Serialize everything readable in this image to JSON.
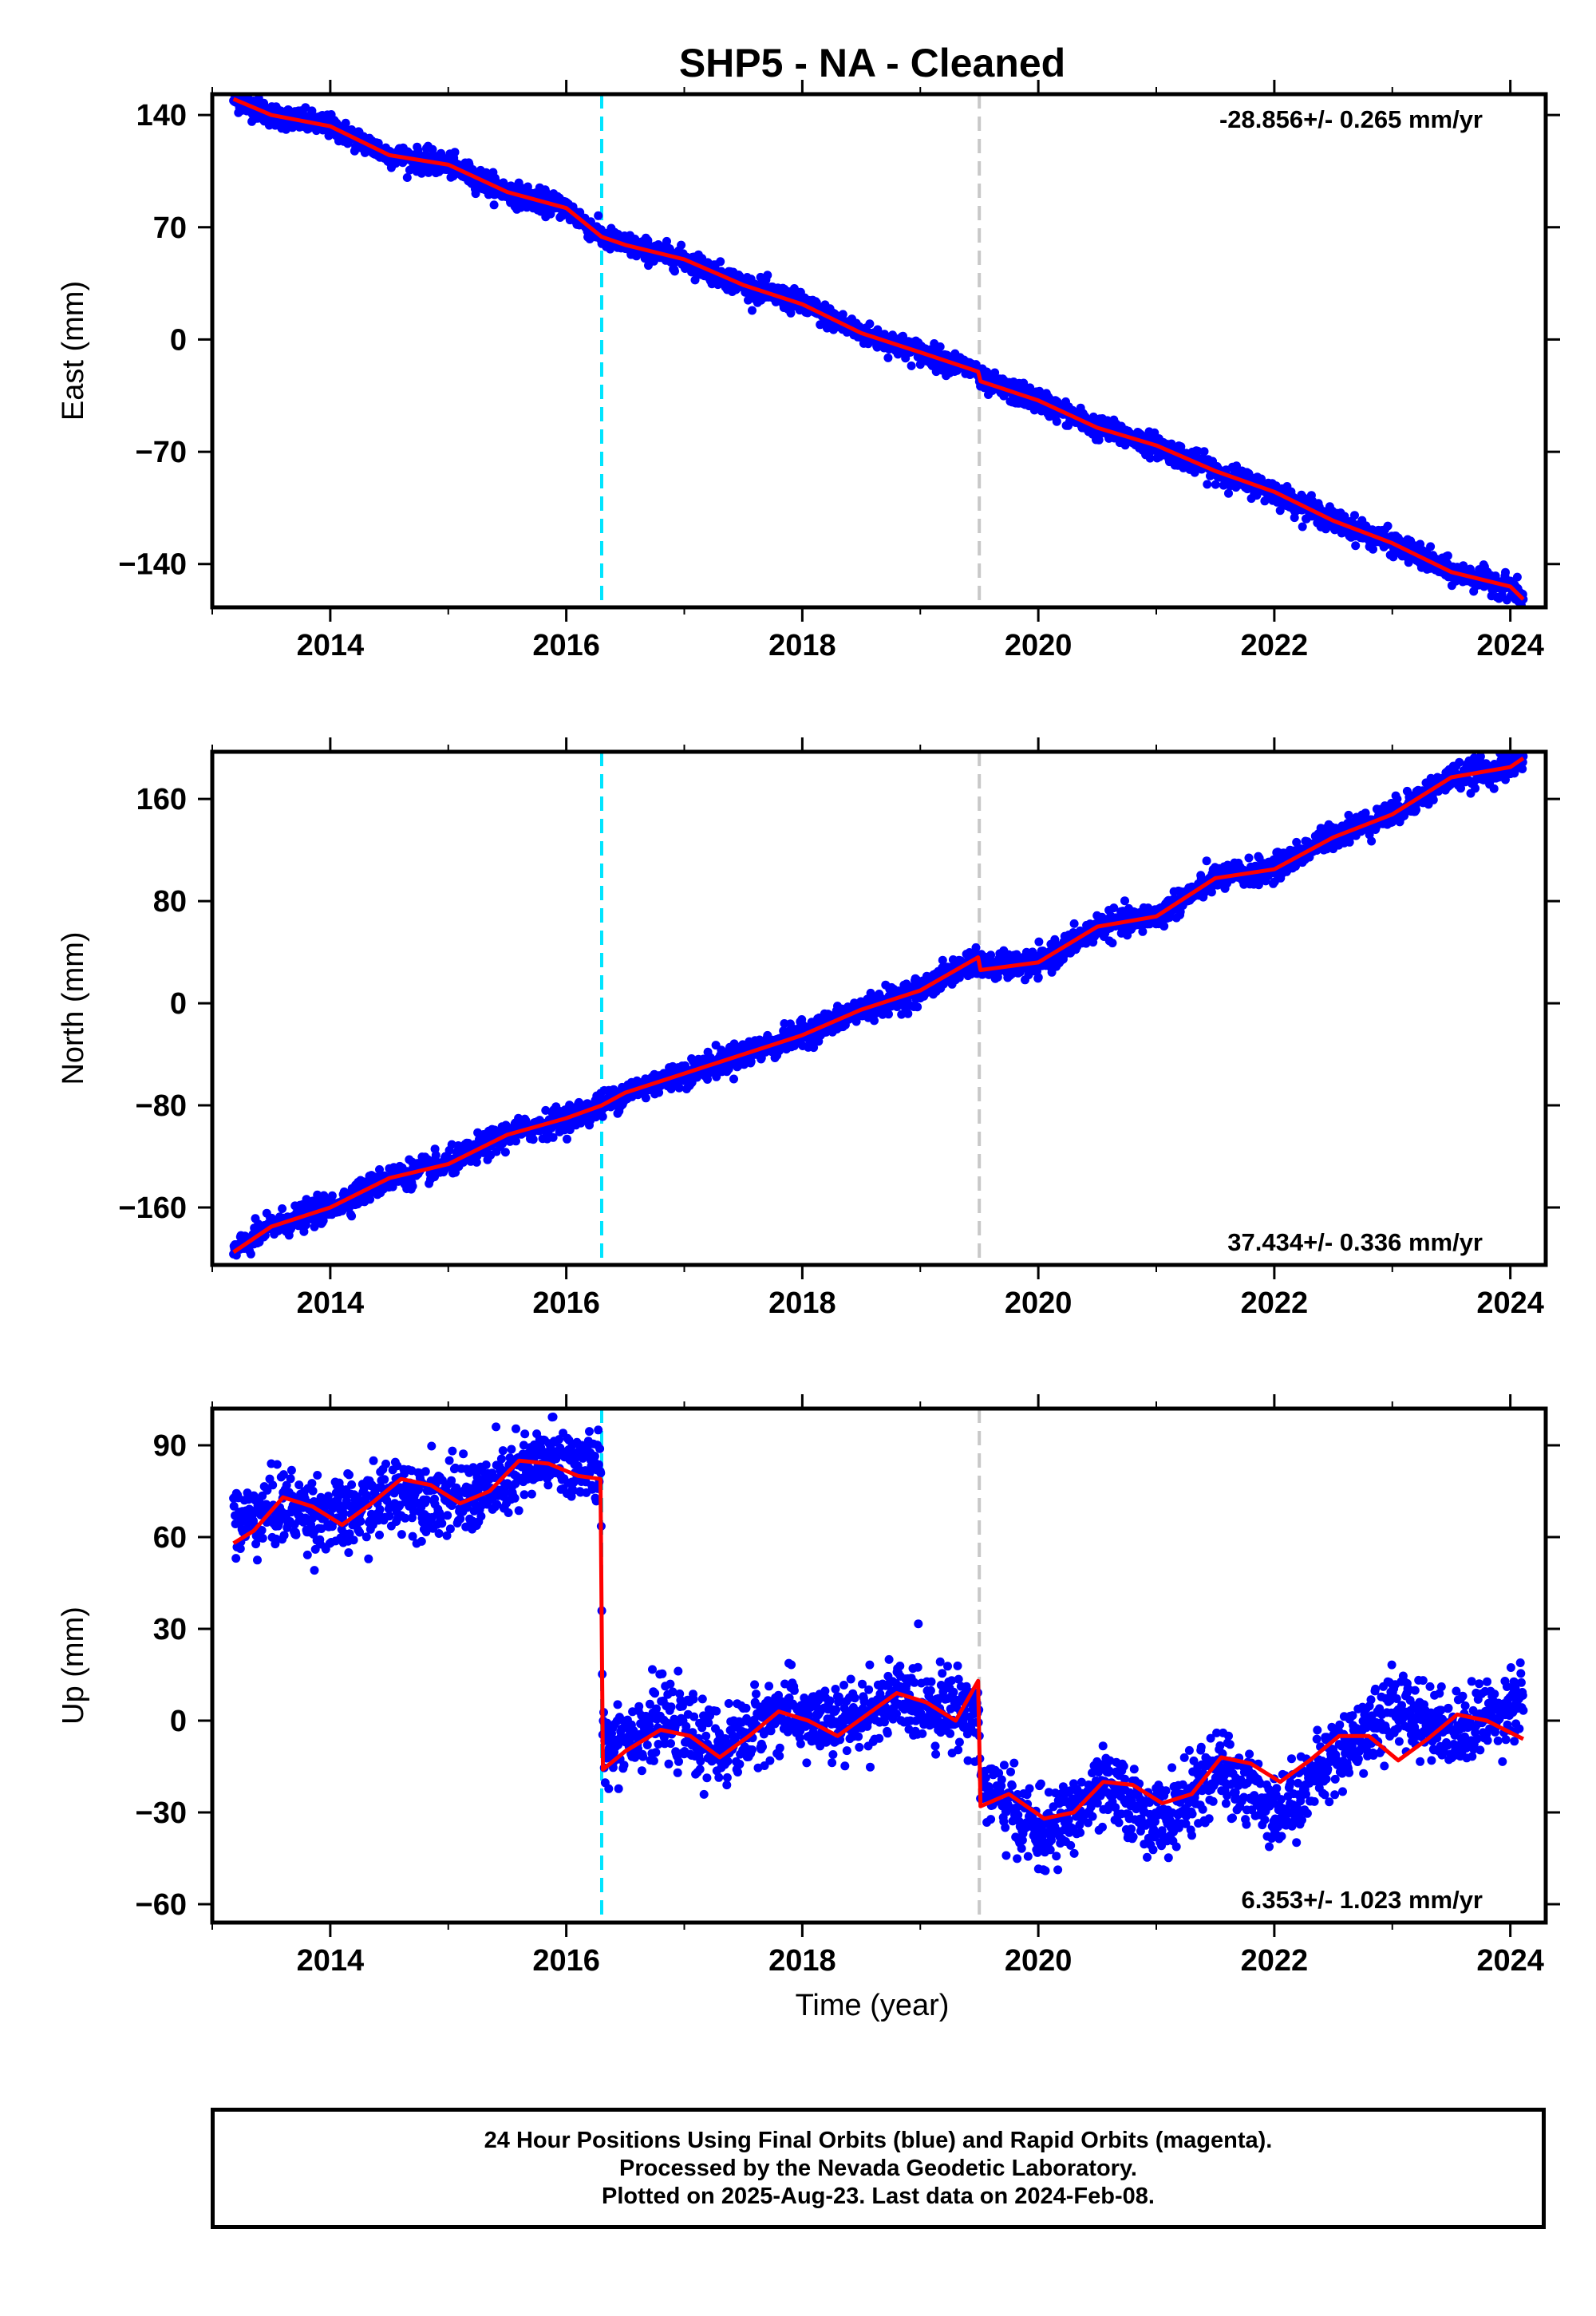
{
  "title": "SHP5  - NA - Cleaned",
  "x_axis_title": "Time (year)",
  "colors": {
    "points": "#0000ff",
    "model": "#ff0000",
    "offset_antenna": "#00e5ff",
    "offset_other": "#c8c8c8",
    "frame": "#000000"
  },
  "footer": {
    "line1": "24 Hour Positions Using Final Orbits (blue) and Rapid Orbits (magenta).",
    "line2": "Processed by the Nevada Geodetic Laboratory.",
    "line3": "Plotted on 2025-Aug-23. Last data on 2024-Feb-08."
  },
  "chart_data": [
    {
      "type": "scatter",
      "ylabel": "East (mm)",
      "rate_label": "-28.856+/- 0.265 mm/yr",
      "rate_position": "top-right",
      "xlim": [
        2013.0,
        2024.3
      ],
      "ylim": [
        -167,
        153
      ],
      "x_ticks": [
        2014,
        2016,
        2018,
        2020,
        2022,
        2024
      ],
      "y_ticks": [
        140,
        70,
        0,
        -70,
        -140
      ],
      "y_tick_labels": [
        "140",
        "70",
        "0",
        "−70",
        "−140"
      ],
      "offsets": [
        {
          "x": 2016.3,
          "style": "cyan-dashed"
        },
        {
          "x": 2019.5,
          "style": "gray-dashed"
        }
      ],
      "model_line": {
        "x": [
          2013.18,
          2013.5,
          2014.0,
          2014.5,
          2015.0,
          2015.5,
          2016.0,
          2016.3,
          2016.5,
          2017.0,
          2017.5,
          2018.0,
          2018.5,
          2019.0,
          2019.49,
          2019.51,
          2020.0,
          2020.5,
          2021.0,
          2021.5,
          2022.0,
          2022.5,
          2023.0,
          2023.5,
          2024.0,
          2024.11
        ],
        "y": [
          150,
          140,
          133,
          115,
          109,
          92,
          82,
          64,
          59,
          50,
          34,
          22,
          4,
          -8,
          -20,
          -26,
          -38,
          -55,
          -66,
          -82,
          -95,
          -113,
          -127,
          -145,
          -154,
          -162
        ]
      },
      "points": {
        "x_start": 2013.18,
        "x_end": 2024.11,
        "gaps": [],
        "trend": [
          [
            2013.18,
            150
          ],
          [
            2013.5,
            140
          ],
          [
            2014.0,
            133
          ],
          [
            2014.5,
            115
          ],
          [
            2015.0,
            109
          ],
          [
            2015.5,
            92
          ],
          [
            2016.0,
            82
          ],
          [
            2016.3,
            64
          ],
          [
            2016.5,
            59
          ],
          [
            2017.0,
            50
          ],
          [
            2017.5,
            34
          ],
          [
            2018.0,
            22
          ],
          [
            2018.5,
            4
          ],
          [
            2019.0,
            -8
          ],
          [
            2019.49,
            -20
          ],
          [
            2019.51,
            -26
          ],
          [
            2020.0,
            -38
          ],
          [
            2020.5,
            -55
          ],
          [
            2021.0,
            -66
          ],
          [
            2021.5,
            -82
          ],
          [
            2022.0,
            -95
          ],
          [
            2022.5,
            -113
          ],
          [
            2023.0,
            -127
          ],
          [
            2023.5,
            -145
          ],
          [
            2024.0,
            -154
          ],
          [
            2024.11,
            -162
          ]
        ],
        "scatter_mm": 3.5
      }
    },
    {
      "type": "scatter",
      "ylabel": "North (mm)",
      "rate_label": "37.434+/- 0.336 mm/yr",
      "rate_position": "bottom-right",
      "xlim": [
        2013.0,
        2024.3
      ],
      "ylim": [
        -205,
        197
      ],
      "x_ticks": [
        2014,
        2016,
        2018,
        2020,
        2022,
        2024
      ],
      "y_ticks": [
        160,
        80,
        0,
        -80,
        -160
      ],
      "y_tick_labels": [
        "160",
        "80",
        "0",
        "−80",
        "−160"
      ],
      "offsets": [
        {
          "x": 2016.3,
          "style": "cyan-dashed"
        },
        {
          "x": 2019.5,
          "style": "gray-dashed"
        }
      ],
      "model_line": {
        "x": [
          2013.18,
          2013.5,
          2014.0,
          2014.5,
          2015.0,
          2015.5,
          2016.0,
          2016.3,
          2016.5,
          2017.0,
          2017.5,
          2018.0,
          2018.5,
          2019.0,
          2019.49,
          2019.51,
          2020.0,
          2020.5,
          2021.0,
          2021.5,
          2022.0,
          2022.5,
          2023.0,
          2023.5,
          2024.0,
          2024.11
        ],
        "y": [
          -195,
          -175,
          -160,
          -137,
          -126,
          -103,
          -90,
          -80,
          -70,
          -55,
          -40,
          -25,
          -5,
          10,
          36,
          26,
          32,
          60,
          68,
          98,
          105,
          130,
          148,
          177,
          185,
          192
        ]
      },
      "points": {
        "x_start": 2013.18,
        "x_end": 2024.11,
        "gaps": [],
        "trend": [
          [
            2013.18,
            -195
          ],
          [
            2013.5,
            -175
          ],
          [
            2014.0,
            -160
          ],
          [
            2014.5,
            -137
          ],
          [
            2015.0,
            -126
          ],
          [
            2015.5,
            -103
          ],
          [
            2016.0,
            -90
          ],
          [
            2016.3,
            -80
          ],
          [
            2016.5,
            -70
          ],
          [
            2017.0,
            -55
          ],
          [
            2017.5,
            -40
          ],
          [
            2018.0,
            -25
          ],
          [
            2018.5,
            -5
          ],
          [
            2019.0,
            10
          ],
          [
            2019.49,
            36
          ],
          [
            2019.51,
            28
          ],
          [
            2020.0,
            30
          ],
          [
            2020.5,
            60
          ],
          [
            2021.0,
            68
          ],
          [
            2021.5,
            98
          ],
          [
            2022.0,
            105
          ],
          [
            2022.5,
            132
          ],
          [
            2023.0,
            148
          ],
          [
            2023.5,
            177
          ],
          [
            2024.0,
            185
          ],
          [
            2024.11,
            194
          ]
        ],
        "scatter_mm": 5
      }
    },
    {
      "type": "scatter",
      "ylabel": "Up (mm)",
      "rate_label": "6.353+/- 1.023 mm/yr",
      "rate_position": "bottom-right",
      "xlim": [
        2013.0,
        2024.3
      ],
      "ylim": [
        -66,
        102
      ],
      "x_ticks": [
        2014,
        2016,
        2018,
        2020,
        2022,
        2024
      ],
      "y_ticks": [
        90,
        60,
        30,
        0,
        -30,
        -60
      ],
      "y_tick_labels": [
        "90",
        "60",
        "30",
        "0",
        "−30",
        "−60"
      ],
      "offsets": [
        {
          "x": 2016.3,
          "style": "cyan-dashed"
        },
        {
          "x": 2019.5,
          "style": "gray-dashed"
        }
      ],
      "model_line": {
        "x": [
          2013.18,
          2013.35,
          2013.6,
          2013.85,
          2014.1,
          2014.35,
          2014.6,
          2014.85,
          2015.1,
          2015.35,
          2015.6,
          2015.85,
          2016.1,
          2016.29,
          2016.31,
          2016.5,
          2016.8,
          2017.05,
          2017.3,
          2017.55,
          2017.8,
          2018.05,
          2018.3,
          2018.55,
          2018.8,
          2019.05,
          2019.3,
          2019.49,
          2019.51,
          2019.75,
          2020.05,
          2020.3,
          2020.55,
          2020.8,
          2021.05,
          2021.3,
          2021.55,
          2021.8,
          2022.05,
          2022.3,
          2022.55,
          2022.8,
          2023.05,
          2023.3,
          2023.55,
          2023.8,
          2024.11
        ],
        "y": [
          58,
          62,
          73,
          70,
          64,
          71,
          79,
          77,
          71,
          75,
          85,
          84,
          80,
          79,
          -16,
          -10,
          -3,
          -5,
          -12,
          -5,
          3,
          0,
          -5,
          2,
          9,
          6,
          0,
          13,
          -28,
          -24,
          -32,
          -30,
          -20,
          -21,
          -27,
          -24,
          -12,
          -14,
          -20,
          -13,
          -5,
          -5,
          -13,
          -6,
          2,
          0,
          -6
        ]
      },
      "points": {
        "x_start": 2013.18,
        "x_end": 2024.11,
        "gaps": [],
        "trend": [
          [
            2013.18,
            64
          ],
          [
            2013.6,
            70
          ],
          [
            2014.1,
            66
          ],
          [
            2014.6,
            75
          ],
          [
            2015.1,
            72
          ],
          [
            2015.35,
            75
          ],
          [
            2015.85,
            86
          ],
          [
            2016.29,
            82
          ],
          [
            2016.31,
            -8
          ],
          [
            2016.8,
            0
          ],
          [
            2017.3,
            -10
          ],
          [
            2017.8,
            3
          ],
          [
            2018.3,
            -2
          ],
          [
            2018.8,
            7
          ],
          [
            2019.49,
            3
          ],
          [
            2019.51,
            -20
          ],
          [
            2020.05,
            -38
          ],
          [
            2020.55,
            -22
          ],
          [
            2021.05,
            -33
          ],
          [
            2021.55,
            -16
          ],
          [
            2022.05,
            -30
          ],
          [
            2022.55,
            -10
          ],
          [
            2023.05,
            5
          ],
          [
            2023.55,
            -4
          ],
          [
            2024.11,
            8
          ]
        ],
        "scatter_mm": 6
      }
    }
  ]
}
